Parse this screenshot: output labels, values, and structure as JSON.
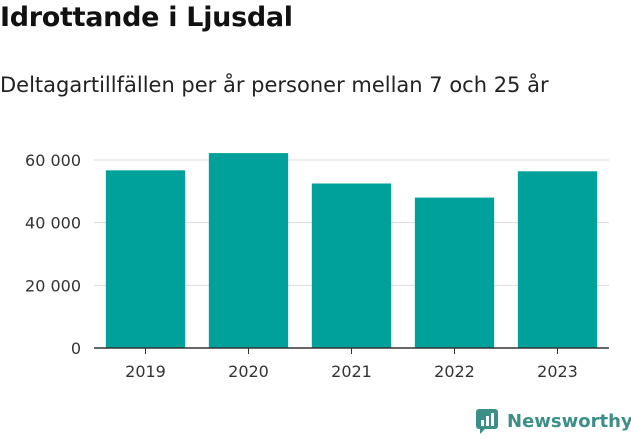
{
  "header": {
    "title": "Idrottande i Ljusdal",
    "subtitle": "Deltagartillfällen per år personer mellan 7 och 25 år"
  },
  "brand": {
    "name": "Newsworthy",
    "icon": "newsworthy-logo-icon"
  },
  "colors": {
    "bar": "#00a19a",
    "grid": "#dddddd",
    "axis": "#333333",
    "text": "#333333",
    "brand": "#3c8f86"
  },
  "chart_data": {
    "type": "bar",
    "title": "",
    "xlabel": "",
    "ylabel": "",
    "categories": [
      "2019",
      "2020",
      "2021",
      "2022",
      "2023"
    ],
    "values": [
      56700,
      62200,
      52500,
      48000,
      56400
    ],
    "ylim": [
      0,
      60000
    ],
    "yticks": [
      0,
      20000,
      40000,
      60000
    ],
    "ytick_labels": [
      "0",
      "20 000",
      "40 000",
      "60 000"
    ],
    "grid": true,
    "legend": "none"
  }
}
